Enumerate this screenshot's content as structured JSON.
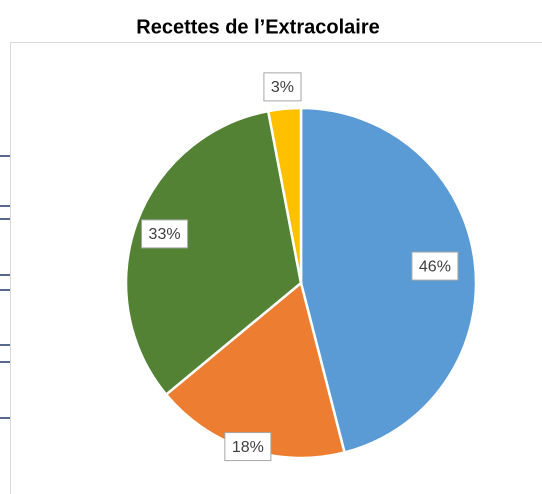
{
  "chart_data": {
    "type": "pie",
    "title": "Recettes de l’Extracolaire",
    "categories": [
      null,
      null,
      null,
      null
    ],
    "values": [
      46,
      18,
      33,
      3
    ],
    "value_labels": [
      "46%",
      "18%",
      "33%",
      "3%"
    ],
    "colors": [
      "#5b9bd5",
      "#ed7d31",
      "#548235",
      "#ffc000"
    ]
  }
}
